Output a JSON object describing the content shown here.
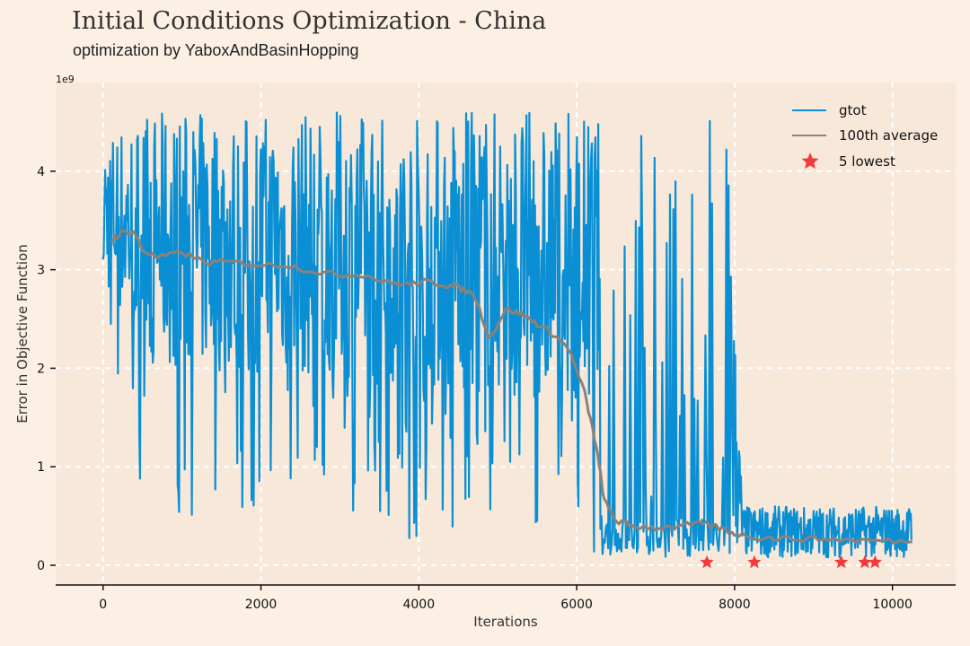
{
  "page": {
    "title": "Initial Conditions Optimization - China",
    "subtitle": "optimization by YaboxAndBasinHopping"
  },
  "colors": {
    "background": "#fcf0e4",
    "plot_bg": "#f8e8da",
    "grid": "#ffffff",
    "gtot": "#0a8fd4",
    "average": "#8c8179",
    "lowest": "#f23a3a"
  },
  "chart_data": {
    "type": "line",
    "title": "Initial Conditions Optimization - China",
    "subtitle": "optimization by YaboxAndBasinHopping",
    "xlabel": "Iterations",
    "ylabel": "Error in Objective Function",
    "y_multiplier_label": "1e9",
    "xlim": [
      -600,
      10800
    ],
    "ylim": [
      -0.2,
      4.9
    ],
    "xticks": [
      0,
      2000,
      4000,
      6000,
      8000,
      10000
    ],
    "yticks": [
      0,
      1,
      2,
      3,
      4
    ],
    "grid": true,
    "legend_position": "top-right",
    "series": [
      {
        "name": "gtot",
        "kind": "line",
        "envelope_x": [
          0,
          500,
          1000,
          2000,
          3000,
          4000,
          5000,
          5800,
          6200,
          6400,
          7000,
          7900,
          8100,
          9000,
          10250
        ],
        "envelope_low": [
          2.0,
          0.8,
          0.5,
          0.5,
          0.4,
          0.2,
          0.15,
          0.15,
          0.12,
          0.1,
          0.08,
          0.08,
          0.08,
          0.08,
          0.08
        ],
        "envelope_high": [
          4.4,
          4.6,
          4.6,
          4.6,
          4.6,
          4.6,
          4.65,
          4.6,
          4.6,
          4.4,
          4.6,
          4.6,
          0.6,
          0.6,
          0.6
        ],
        "dense_x": [
          0,
          6300
        ],
        "sparse_x": [
          6300,
          7950
        ],
        "tail_x": [
          7950,
          10250
        ]
      },
      {
        "name": "100th average",
        "kind": "line",
        "x": [
          100,
          250,
          400,
          500,
          700,
          1000,
          1300,
          1600,
          2000,
          2300,
          2700,
          3000,
          3300,
          3600,
          3900,
          4100,
          4300,
          4500,
          4700,
          4900,
          5100,
          5300,
          5500,
          5700,
          5900,
          6100,
          6250,
          6350,
          6500,
          6700,
          7000,
          7300,
          7600,
          7800,
          8000,
          8300,
          8600,
          9000,
          9400,
          9800,
          10250
        ],
        "y": [
          3.3,
          3.38,
          3.38,
          3.2,
          3.12,
          3.18,
          3.07,
          3.08,
          3.05,
          3.05,
          2.98,
          2.95,
          2.95,
          2.87,
          2.85,
          2.88,
          2.85,
          2.82,
          2.75,
          2.3,
          2.6,
          2.55,
          2.45,
          2.35,
          2.2,
          1.75,
          1.2,
          0.65,
          0.45,
          0.4,
          0.38,
          0.4,
          0.42,
          0.38,
          0.32,
          0.28,
          0.27,
          0.27,
          0.26,
          0.25,
          0.24
        ]
      },
      {
        "name": "5 lowest",
        "kind": "scatter",
        "marker": "star",
        "x": [
          7650,
          8250,
          9350,
          9650,
          9780
        ],
        "y": [
          0.03,
          0.03,
          0.03,
          0.03,
          0.03
        ]
      }
    ]
  }
}
